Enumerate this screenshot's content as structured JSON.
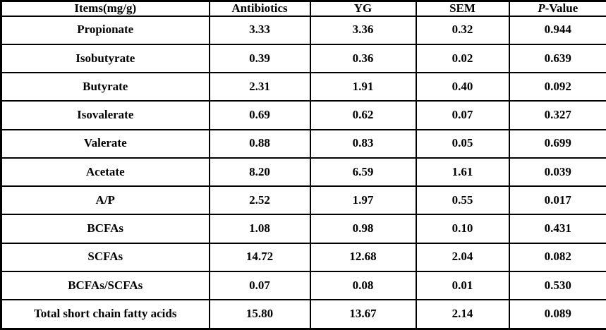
{
  "table": {
    "columns": [
      {
        "label": "Items(mg/g)"
      },
      {
        "label": "Antibiotics"
      },
      {
        "label": "YG"
      },
      {
        "label": "SEM"
      },
      {
        "label": "P-Value",
        "italic_prefix": "P",
        "suffix": "-Value"
      }
    ],
    "rows": [
      {
        "item": "Propionate",
        "values": [
          "3.33",
          "3.36",
          "0.32",
          "0.944"
        ]
      },
      {
        "item": "Isobutyrate",
        "values": [
          "0.39",
          "0.36",
          "0.02",
          "0.639"
        ]
      },
      {
        "item": "Butyrate",
        "values": [
          "2.31",
          "1.91",
          "0.40",
          "0.092"
        ]
      },
      {
        "item": "Isovalerate",
        "values": [
          "0.69",
          "0.62",
          "0.07",
          "0.327"
        ]
      },
      {
        "item": "Valerate",
        "values": [
          "0.88",
          "0.83",
          "0.05",
          "0.699"
        ]
      },
      {
        "item": "Acetate",
        "values": [
          "8.20",
          "6.59",
          "1.61",
          "0.039"
        ]
      },
      {
        "item": "A/P",
        "values": [
          "2.52",
          "1.97",
          "0.55",
          "0.017"
        ]
      },
      {
        "item": "BCFAs",
        "values": [
          "1.08",
          "0.98",
          "0.10",
          "0.431"
        ]
      },
      {
        "item": "SCFAs",
        "values": [
          "14.72",
          "12.68",
          "2.04",
          "0.082"
        ]
      },
      {
        "item": "BCFAs/SCFAs",
        "values": [
          "0.07",
          "0.08",
          "0.01",
          "0.530"
        ]
      },
      {
        "item": "Total short chain fatty acids",
        "values": [
          "15.80",
          "13.67",
          "2.14",
          "0.089"
        ]
      }
    ],
    "border_color": "#000000",
    "background_color": "#ffffff",
    "text_color": "#000000"
  }
}
